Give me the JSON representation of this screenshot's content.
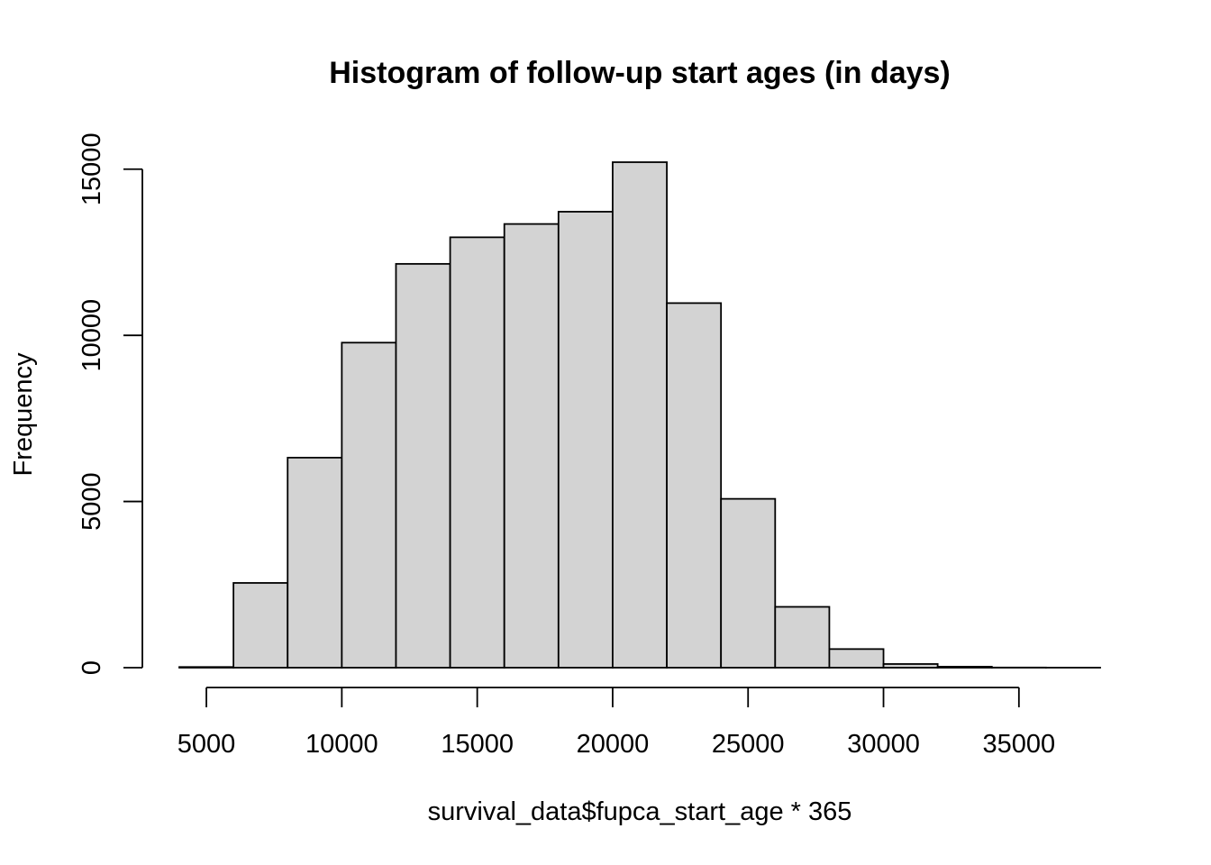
{
  "chart_data": {
    "type": "bar",
    "title": "Histogram of follow-up start ages (in days)",
    "xlabel": "survival_data$fupca_start_age * 365",
    "ylabel": "Frequency",
    "bin_edges": [
      4000,
      6000,
      8000,
      10000,
      12000,
      14000,
      16000,
      18000,
      20000,
      22000,
      24000,
      26000,
      28000,
      30000,
      32000,
      34000,
      36000,
      38000
    ],
    "values": [
      20,
      2550,
      6320,
      9780,
      12150,
      12950,
      13350,
      13720,
      15210,
      10970,
      5080,
      1830,
      560,
      110,
      30,
      5,
      2
    ],
    "xlim": [
      4000,
      38000
    ],
    "ylim": [
      0,
      15210
    ],
    "x_ticks": [
      5000,
      10000,
      15000,
      20000,
      25000,
      30000,
      35000
    ],
    "x_tick_labels": [
      "5000",
      "10000",
      "15000",
      "20000",
      "25000",
      "30000",
      "35000"
    ],
    "y_ticks": [
      0,
      5000,
      10000,
      15000
    ],
    "y_tick_labels": [
      "0",
      "5000",
      "10000",
      "15000"
    ],
    "bar_fill": "#d3d3d3",
    "bar_stroke": "#000000",
    "grid": false,
    "legend": "none"
  }
}
